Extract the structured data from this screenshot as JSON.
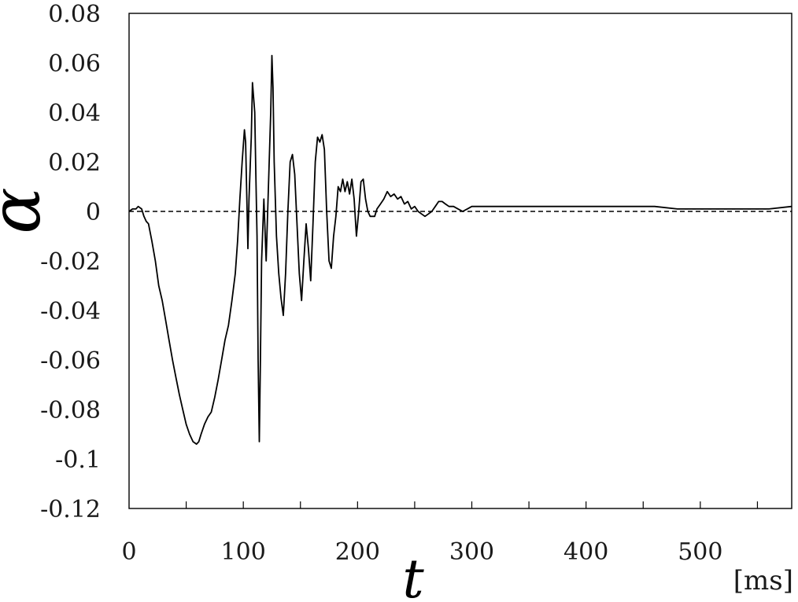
{
  "chart_data": {
    "type": "line",
    "title": "",
    "xlabel": "t",
    "ylabel": "α",
    "x_unit": "[ms]",
    "xlim": [
      0,
      580
    ],
    "ylim": [
      -0.12,
      0.08
    ],
    "x_ticks": [
      "0",
      "100",
      "200",
      "300",
      "400",
      "500"
    ],
    "y_ticks": [
      "0.08",
      "0.06",
      "0.04",
      "0.02",
      "0",
      "-0.02",
      "-0.04",
      "-0.06",
      "-0.08",
      "-0.1",
      "-0.12"
    ],
    "grid": false,
    "reference_line": {
      "y": 0,
      "style": "dashed"
    },
    "colors": {
      "line": "#000000",
      "axis": "#000000",
      "reference": "#000000"
    },
    "series": [
      {
        "values": [
          [
            0,
            0
          ],
          [
            3,
            0.001
          ],
          [
            6,
            0.001
          ],
          [
            8,
            0.002
          ],
          [
            11,
            0.001
          ],
          [
            13,
            -0.002
          ],
          [
            15,
            -0.004
          ],
          [
            17,
            -0.005
          ],
          [
            20,
            -0.012
          ],
          [
            23,
            -0.02
          ],
          [
            26,
            -0.03
          ],
          [
            29,
            -0.036
          ],
          [
            32,
            -0.044
          ],
          [
            35,
            -0.052
          ],
          [
            38,
            -0.06
          ],
          [
            41,
            -0.067
          ],
          [
            44,
            -0.074
          ],
          [
            47,
            -0.08
          ],
          [
            50,
            -0.086
          ],
          [
            53,
            -0.09
          ],
          [
            56,
            -0.093
          ],
          [
            59,
            -0.094
          ],
          [
            61,
            -0.093
          ],
          [
            63,
            -0.09
          ],
          [
            66,
            -0.086
          ],
          [
            69,
            -0.083
          ],
          [
            72,
            -0.081
          ],
          [
            75,
            -0.075
          ],
          [
            78,
            -0.068
          ],
          [
            81,
            -0.06
          ],
          [
            84,
            -0.052
          ],
          [
            87,
            -0.046
          ],
          [
            90,
            -0.036
          ],
          [
            93,
            -0.025
          ],
          [
            95,
            -0.012
          ],
          [
            97,
            0.005
          ],
          [
            99,
            0.02
          ],
          [
            101,
            0.033
          ],
          [
            102,
            0.028
          ],
          [
            104,
            -0.015
          ],
          [
            105,
            0.005
          ],
          [
            107,
            0.03
          ],
          [
            108,
            0.052
          ],
          [
            110,
            0.04
          ],
          [
            111,
            0.015
          ],
          [
            112,
            -0.01
          ],
          [
            113,
            -0.06
          ],
          [
            114,
            -0.093
          ],
          [
            115,
            -0.06
          ],
          [
            116,
            -0.02
          ],
          [
            118,
            0.005
          ],
          [
            120,
            -0.02
          ],
          [
            122,
            0.01
          ],
          [
            124,
            0.04
          ],
          [
            125,
            0.063
          ],
          [
            126,
            0.05
          ],
          [
            127,
            0.02
          ],
          [
            129,
            -0.01
          ],
          [
            131,
            -0.025
          ],
          [
            133,
            -0.035
          ],
          [
            135,
            -0.042
          ],
          [
            137,
            -0.025
          ],
          [
            139,
            0.0
          ],
          [
            141,
            0.02
          ],
          [
            143,
            0.023
          ],
          [
            145,
            0.015
          ],
          [
            147,
            -0.005
          ],
          [
            149,
            -0.025
          ],
          [
            151,
            -0.036
          ],
          [
            153,
            -0.02
          ],
          [
            155,
            -0.005
          ],
          [
            157,
            -0.015
          ],
          [
            159,
            -0.028
          ],
          [
            161,
            -0.005
          ],
          [
            163,
            0.02
          ],
          [
            165,
            0.03
          ],
          [
            167,
            0.028
          ],
          [
            169,
            0.031
          ],
          [
            171,
            0.025
          ],
          [
            173,
            0.0
          ],
          [
            175,
            -0.02
          ],
          [
            177,
            -0.023
          ],
          [
            179,
            -0.01
          ],
          [
            181,
            -0.002
          ],
          [
            183,
            0.01
          ],
          [
            185,
            0.008
          ],
          [
            187,
            0.013
          ],
          [
            189,
            0.008
          ],
          [
            191,
            0.012
          ],
          [
            193,
            0.007
          ],
          [
            195,
            0.013
          ],
          [
            197,
            0.005
          ],
          [
            199,
            -0.01
          ],
          [
            201,
            0.0
          ],
          [
            203,
            0.012
          ],
          [
            205,
            0.013
          ],
          [
            207,
            0.005
          ],
          [
            209,
            0.0
          ],
          [
            211,
            -0.002
          ],
          [
            213,
            -0.002
          ],
          [
            215,
            -0.002
          ],
          [
            217,
            0.001
          ],
          [
            220,
            0.003
          ],
          [
            223,
            0.005
          ],
          [
            226,
            0.008
          ],
          [
            229,
            0.006
          ],
          [
            232,
            0.007
          ],
          [
            235,
            0.005
          ],
          [
            238,
            0.006
          ],
          [
            241,
            0.003
          ],
          [
            244,
            0.004
          ],
          [
            247,
            0.001
          ],
          [
            250,
            0.002
          ],
          [
            253,
            0.0
          ],
          [
            256,
            -0.001
          ],
          [
            259,
            -0.002
          ],
          [
            262,
            -0.001
          ],
          [
            265,
            0.0
          ],
          [
            268,
            0.002
          ],
          [
            271,
            0.004
          ],
          [
            274,
            0.004
          ],
          [
            277,
            0.003
          ],
          [
            280,
            0.002
          ],
          [
            284,
            0.002
          ],
          [
            288,
            0.001
          ],
          [
            292,
            0.0
          ],
          [
            296,
            0.001
          ],
          [
            300,
            0.002
          ],
          [
            310,
            0.002
          ],
          [
            320,
            0.002
          ],
          [
            330,
            0.002
          ],
          [
            340,
            0.002
          ],
          [
            350,
            0.002
          ],
          [
            360,
            0.002
          ],
          [
            370,
            0.002
          ],
          [
            380,
            0.002
          ],
          [
            390,
            0.002
          ],
          [
            400,
            0.002
          ],
          [
            420,
            0.002
          ],
          [
            440,
            0.002
          ],
          [
            460,
            0.002
          ],
          [
            480,
            0.001
          ],
          [
            500,
            0.001
          ],
          [
            520,
            0.001
          ],
          [
            540,
            0.001
          ],
          [
            560,
            0.001
          ],
          [
            580,
            0.002
          ]
        ]
      }
    ]
  }
}
